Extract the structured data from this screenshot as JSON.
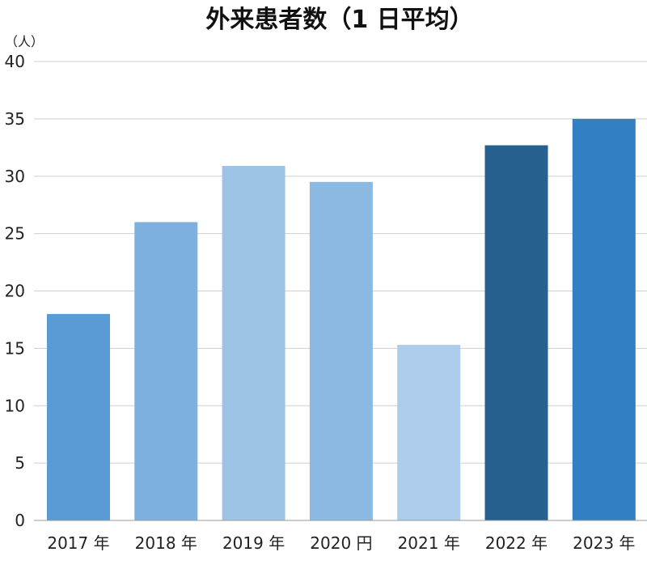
{
  "chart_data": {
    "type": "bar",
    "title": "外来患者数（1 日平均）",
    "ylabel": "（人）",
    "xlabel": "",
    "categories": [
      "2017 年",
      "2018 年",
      "2019 年",
      "2020 円",
      "2021 年",
      "2022 年",
      "2023 年"
    ],
    "values": [
      18,
      26,
      30.9,
      29.5,
      15.3,
      32.7,
      35
    ],
    "bar_colors": [
      "#5b9bd5",
      "#7dafdf",
      "#9dc3e6",
      "#8cb9e2",
      "#adcdeb",
      "#25608f",
      "#337fc4"
    ],
    "ylim": [
      0,
      40
    ],
    "yticks": [
      0,
      5,
      10,
      15,
      20,
      25,
      30,
      35,
      40
    ],
    "grid": true,
    "legend": "none"
  }
}
